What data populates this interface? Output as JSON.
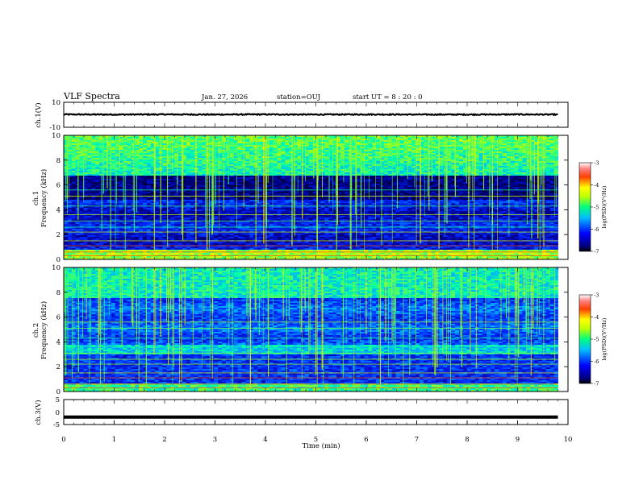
{
  "header": {
    "title": "VLF Spectra",
    "date": "Jan. 27, 2026",
    "station": "station=OUJ",
    "start": "start UT =  8 : 20 : 0"
  },
  "chart_data": [
    {
      "type": "line",
      "panel": "ch1-waveform",
      "ylabel": "ch.1(V)",
      "ylim": [
        -10,
        10
      ],
      "y_ticks": [
        "10",
        "-10"
      ],
      "xlim": [
        0,
        10
      ],
      "x": [
        0,
        1,
        2,
        3,
        4,
        5,
        6,
        7,
        8,
        9,
        9.8
      ],
      "values": [
        0.3,
        0.2,
        0.3,
        0.2,
        0.3,
        0.2,
        0.3,
        0.2,
        0.2,
        0.3,
        0.2
      ]
    },
    {
      "type": "heatmap",
      "panel": "ch1-spectrogram",
      "ylabel": "ch.1\nFrequency (kHz)",
      "ylim": [
        0,
        10
      ],
      "y_ticks": [
        "0",
        "2",
        "4",
        "6",
        "8",
        "10"
      ],
      "xlim": [
        0,
        10
      ],
      "colorbar": {
        "label": "log(PSD)(V²/Hz)",
        "ticks": [
          "-3",
          "-4",
          "-5",
          "-6",
          "-7"
        ],
        "range": [
          -7,
          -3
        ]
      }
    },
    {
      "type": "heatmap",
      "panel": "ch2-spectrogram",
      "ylabel": "ch.2\nFrequency (kHz)",
      "ylim": [
        0,
        10
      ],
      "y_ticks": [
        "0",
        "2",
        "4",
        "6",
        "8",
        "10"
      ],
      "xlim": [
        0,
        10
      ],
      "colorbar": {
        "label": "log(PSD)(V²/Hz)",
        "ticks": [
          "-3",
          "-4",
          "-5",
          "-6",
          "-7"
        ],
        "range": [
          -7,
          -3
        ]
      }
    },
    {
      "type": "line",
      "panel": "ch3-waveform",
      "ylabel": "ch.3(V)",
      "ylim": [
        -5,
        5
      ],
      "y_ticks": [
        "5",
        "0",
        "-5"
      ],
      "xlim": [
        0,
        10
      ],
      "xlabel": "Time (min)",
      "x_ticks": [
        "0",
        "1",
        "2",
        "3",
        "4",
        "5",
        "6",
        "7",
        "8",
        "9",
        "10"
      ],
      "x": [
        0,
        9.8
      ],
      "values": [
        -2,
        -2
      ]
    }
  ],
  "colors": {
    "background": "#00007f",
    "colormap": [
      "#00007f",
      "#0000ff",
      "#00bfff",
      "#00ff7f",
      "#bfff00",
      "#ffff00",
      "#ff7f00",
      "#ff0000",
      "#ffffff"
    ]
  }
}
